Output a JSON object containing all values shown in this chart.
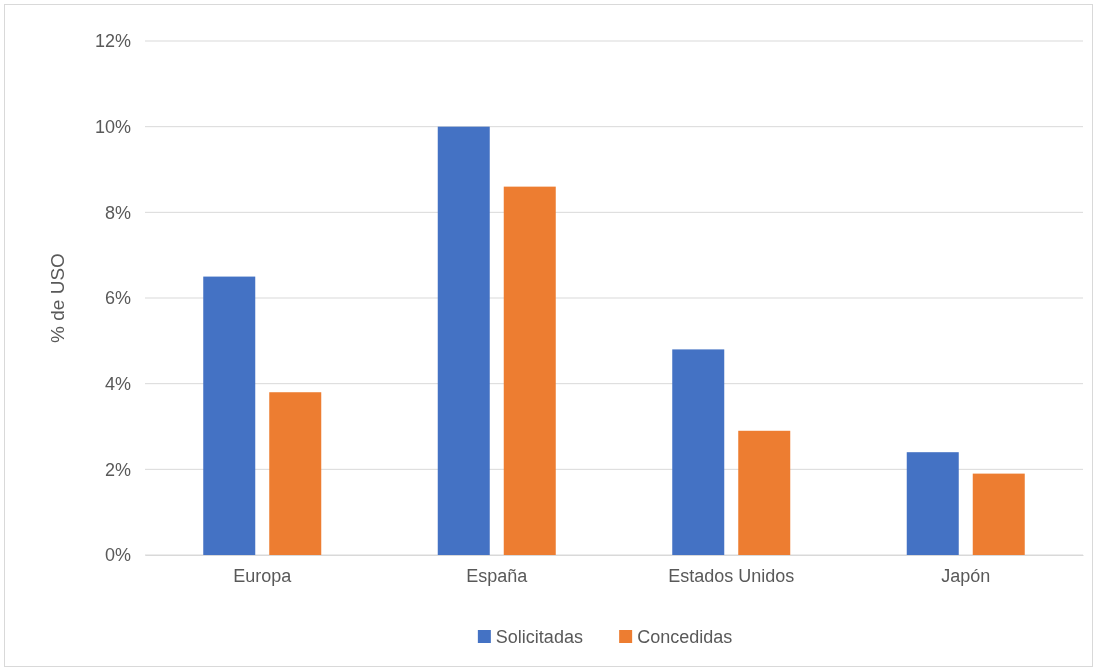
{
  "chart_data": {
    "type": "bar",
    "ylabel": "% de USO",
    "categories": [
      "Europa",
      "España",
      "Estados Unidos",
      "Japón"
    ],
    "series": [
      {
        "name": "Solicitadas",
        "color": "#4472c4",
        "values": [
          6.5,
          10.0,
          4.8,
          2.4
        ]
      },
      {
        "name": "Concedidas",
        "color": "#ed7d31",
        "values": [
          3.8,
          8.6,
          2.9,
          1.9
        ]
      }
    ],
    "ylim": [
      0,
      12
    ],
    "yticks": [
      {
        "value": 0,
        "label": "0%"
      },
      {
        "value": 2,
        "label": "2%"
      },
      {
        "value": 4,
        "label": "4%"
      },
      {
        "value": 6,
        "label": "6%"
      },
      {
        "value": 8,
        "label": "8%"
      },
      {
        "value": 10,
        "label": "10%"
      },
      {
        "value": 12,
        "label": "12%"
      }
    ],
    "grid": "y",
    "legend": "bottom"
  }
}
